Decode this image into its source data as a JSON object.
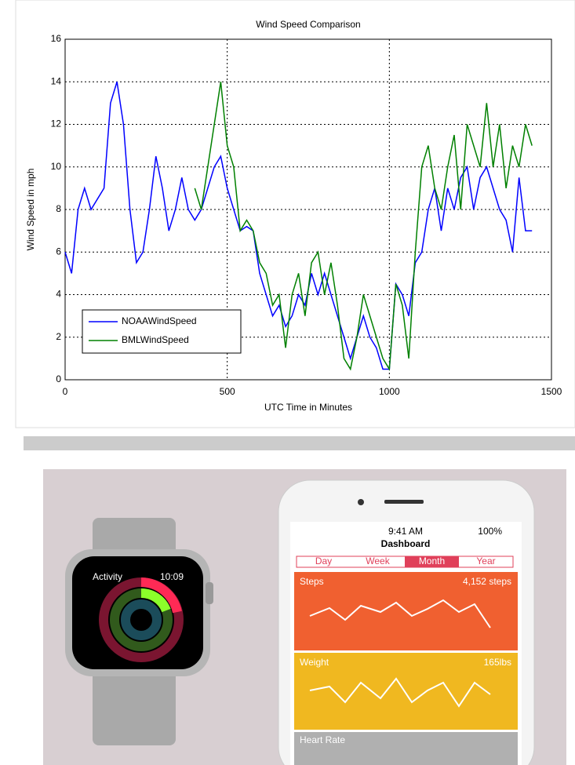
{
  "chart_data": {
    "type": "line",
    "title": "Wind Speed Comparison",
    "x_label": "UTC Time in Minutes",
    "y_label": "Wind Speed in mph",
    "x": [
      0,
      20,
      40,
      60,
      80,
      100,
      120,
      140,
      160,
      180,
      200,
      220,
      240,
      260,
      280,
      300,
      320,
      340,
      360,
      380,
      400,
      420,
      440,
      460,
      480,
      500,
      520,
      540,
      560,
      580,
      600,
      620,
      640,
      660,
      680,
      700,
      720,
      740,
      760,
      780,
      800,
      820,
      840,
      860,
      880,
      900,
      920,
      940,
      960,
      980,
      1000,
      1020,
      1040,
      1060,
      1080,
      1100,
      1120,
      1140,
      1160,
      1180,
      1200,
      1220,
      1240,
      1260,
      1280,
      1300,
      1320,
      1340,
      1360,
      1380,
      1400,
      1420,
      1440
    ],
    "series": [
      {
        "name": "NOAAWindSpeed",
        "color": "#0000ff",
        "values": [
          6,
          5,
          8,
          9,
          8,
          8.5,
          9,
          13,
          14,
          12,
          8,
          5.5,
          6,
          8,
          10.5,
          9,
          7,
          8,
          9.5,
          8,
          7.5,
          8,
          9,
          10,
          10.5,
          9,
          8,
          7,
          7.2,
          7,
          5,
          4,
          3,
          3.5,
          2.5,
          3,
          4,
          3.5,
          5,
          4,
          5,
          4,
          3,
          2,
          1,
          2,
          3,
          2,
          1.5,
          0.5,
          0.5,
          4.5,
          4,
          3,
          5.5,
          6,
          8,
          9,
          7,
          9,
          8,
          9.5,
          10,
          8,
          9.5,
          10,
          9,
          8,
          7.5,
          6,
          9.5,
          7,
          7
        ]
      },
      {
        "name": "BMLWindSpeed",
        "color": "#008000",
        "values": [
          null,
          null,
          null,
          null,
          null,
          null,
          null,
          null,
          null,
          null,
          null,
          null,
          null,
          null,
          null,
          null,
          null,
          null,
          null,
          null,
          9,
          8,
          10,
          12,
          14,
          11,
          10,
          7,
          7.5,
          7,
          5.5,
          5,
          3.5,
          4,
          1.5,
          4,
          5,
          3,
          5.5,
          6,
          4,
          5.5,
          3.5,
          1,
          0.5,
          2,
          4,
          3,
          2,
          1,
          0.5,
          4.5,
          3.5,
          1,
          6,
          10,
          11,
          9,
          8,
          10,
          11.5,
          8,
          12,
          11,
          10,
          13,
          10,
          12,
          9,
          11,
          10,
          12,
          11
        ]
      }
    ],
    "xlim": [
      0,
      1500
    ],
    "xticks": [
      0,
      500,
      1000,
      1500
    ],
    "ylim": [
      0,
      16
    ],
    "yticks": [
      0,
      2,
      4,
      6,
      8,
      10,
      12,
      14,
      16
    ],
    "grid": true,
    "legend": "lower left"
  },
  "photo": {
    "watch": {
      "app": "Activity",
      "time": "10:09"
    },
    "phone": {
      "title": "Dashboard",
      "status_time": "9:41 AM",
      "battery": "100%",
      "tabs": [
        "Day",
        "Week",
        "Month",
        "Year"
      ],
      "cards": [
        {
          "title": "Steps",
          "value": "4,152 steps"
        },
        {
          "title": "Weight",
          "value": "165lbs"
        },
        {
          "title": "Heart Rate"
        }
      ]
    }
  }
}
